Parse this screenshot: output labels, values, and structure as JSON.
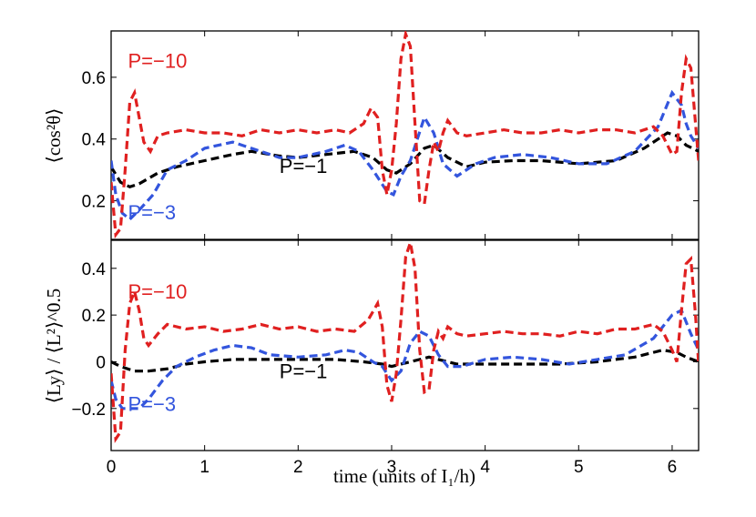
{
  "chart_data": [
    {
      "type": "line",
      "panel": "top",
      "xlabel": "",
      "ylabel": "⟨cos²θ⟩",
      "xlim": [
        0,
        6.283
      ],
      "ylim": [
        0.075,
        0.75
      ],
      "xticks": [
        {
          "value": 0,
          "label": "0"
        },
        {
          "value": 1,
          "label": "1"
        },
        {
          "value": 2,
          "label": "2"
        },
        {
          "value": 3,
          "label": "3"
        },
        {
          "value": 4,
          "label": "4"
        },
        {
          "value": 5,
          "label": "5"
        },
        {
          "value": 6,
          "label": "6"
        }
      ],
      "yticks": [
        {
          "value": 0.2,
          "label": "0.2"
        },
        {
          "value": 0.4,
          "label": "0.4"
        },
        {
          "value": 0.6,
          "label": "0.6"
        }
      ],
      "series": [
        {
          "name": "P=−1",
          "color": "#000000",
          "x": [
            0,
            0.1,
            0.2,
            0.3,
            0.5,
            0.7,
            1.0,
            1.3,
            1.5,
            1.8,
            2.0,
            2.3,
            2.6,
            2.8,
            2.95,
            3.05,
            3.2,
            3.35,
            3.45,
            3.6,
            3.8,
            4.0,
            4.3,
            4.6,
            5.0,
            5.4,
            5.7,
            5.95,
            6.05,
            6.15,
            6.283
          ],
          "y": [
            0.31,
            0.26,
            0.245,
            0.255,
            0.29,
            0.31,
            0.33,
            0.35,
            0.36,
            0.345,
            0.34,
            0.35,
            0.36,
            0.34,
            0.3,
            0.29,
            0.32,
            0.37,
            0.38,
            0.34,
            0.31,
            0.325,
            0.33,
            0.33,
            0.32,
            0.33,
            0.37,
            0.42,
            0.41,
            0.38,
            0.36
          ]
        },
        {
          "name": "P=−3",
          "color": "#3355dd",
          "x": [
            0,
            0.05,
            0.12,
            0.2,
            0.3,
            0.45,
            0.6,
            0.8,
            1.0,
            1.3,
            1.5,
            1.8,
            2.0,
            2.3,
            2.5,
            2.65,
            2.8,
            2.95,
            3.02,
            3.1,
            3.2,
            3.35,
            3.45,
            3.55,
            3.7,
            3.9,
            4.1,
            4.4,
            4.7,
            5.0,
            5.3,
            5.6,
            5.85,
            6.0,
            6.1,
            6.15,
            6.2,
            6.283
          ],
          "y": [
            0.33,
            0.22,
            0.16,
            0.14,
            0.17,
            0.22,
            0.3,
            0.33,
            0.37,
            0.39,
            0.37,
            0.34,
            0.34,
            0.36,
            0.38,
            0.36,
            0.3,
            0.23,
            0.22,
            0.28,
            0.33,
            0.47,
            0.42,
            0.32,
            0.28,
            0.32,
            0.34,
            0.35,
            0.34,
            0.32,
            0.32,
            0.36,
            0.44,
            0.55,
            0.51,
            0.45,
            0.41,
            0.37
          ]
        },
        {
          "name": "P=−10",
          "color": "#e02020",
          "x": [
            0,
            0.05,
            0.1,
            0.15,
            0.2,
            0.25,
            0.3,
            0.35,
            0.42,
            0.5,
            0.6,
            0.8,
            1.0,
            1.2,
            1.4,
            1.6,
            1.8,
            2.0,
            2.2,
            2.4,
            2.55,
            2.7,
            2.78,
            2.85,
            2.9,
            2.95,
            3.0,
            3.05,
            3.1,
            3.15,
            3.2,
            3.25,
            3.3,
            3.35,
            3.4,
            3.45,
            3.5,
            3.55,
            3.6,
            3.7,
            3.8,
            4.0,
            4.2,
            4.4,
            4.6,
            4.8,
            5.0,
            5.2,
            5.4,
            5.6,
            5.8,
            5.9,
            6.0,
            6.05,
            6.1,
            6.15,
            6.2,
            6.25,
            6.283
          ],
          "y": [
            0.26,
            0.09,
            0.11,
            0.3,
            0.52,
            0.55,
            0.47,
            0.39,
            0.36,
            0.41,
            0.42,
            0.43,
            0.42,
            0.42,
            0.41,
            0.43,
            0.42,
            0.43,
            0.42,
            0.43,
            0.42,
            0.45,
            0.5,
            0.47,
            0.3,
            0.22,
            0.3,
            0.45,
            0.66,
            0.74,
            0.7,
            0.45,
            0.2,
            0.19,
            0.3,
            0.39,
            0.36,
            0.42,
            0.46,
            0.42,
            0.41,
            0.42,
            0.43,
            0.42,
            0.42,
            0.43,
            0.42,
            0.43,
            0.43,
            0.42,
            0.44,
            0.41,
            0.35,
            0.36,
            0.55,
            0.66,
            0.63,
            0.45,
            0.33
          ]
        }
      ],
      "annotations": [
        {
          "text": "P=−10",
          "color": "#e02020",
          "x": 0.18,
          "y": 0.63
        },
        {
          "text": "P=−1",
          "color": "#000000",
          "x": 1.8,
          "y": 0.29
        },
        {
          "text": "P=−3",
          "color": "#3355dd",
          "x": 0.18,
          "y": 0.14
        }
      ]
    },
    {
      "type": "line",
      "panel": "bottom",
      "xlabel": "time (units of I₁/h)",
      "ylabel": "⟨Ly⟩ / ⟨L²⟩^0.5",
      "xlim": [
        0,
        6.283
      ],
      "ylim": [
        -0.38,
        0.52
      ],
      "xticks": [
        {
          "value": 0,
          "label": "0"
        },
        {
          "value": 1,
          "label": "1"
        },
        {
          "value": 2,
          "label": "2"
        },
        {
          "value": 3,
          "label": "3"
        },
        {
          "value": 4,
          "label": "4"
        },
        {
          "value": 5,
          "label": "5"
        },
        {
          "value": 6,
          "label": "6"
        }
      ],
      "yticks": [
        {
          "value": -0.2,
          "label": "−0.2"
        },
        {
          "value": 0,
          "label": "0"
        },
        {
          "value": 0.2,
          "label": "0.2"
        },
        {
          "value": 0.4,
          "label": "0.4"
        }
      ],
      "series": [
        {
          "name": "P=−1",
          "color": "#000000",
          "x": [
            0,
            0.1,
            0.25,
            0.4,
            0.6,
            0.8,
            1.0,
            1.3,
            1.6,
            2.0,
            2.4,
            2.7,
            2.9,
            3.0,
            3.2,
            3.4,
            3.5,
            3.7,
            4.0,
            4.4,
            4.8,
            5.2,
            5.6,
            5.9,
            6.05,
            6.15,
            6.283
          ],
          "y": [
            0,
            -0.02,
            -0.04,
            -0.04,
            -0.03,
            -0.01,
            0,
            0.01,
            0.01,
            0.01,
            0.01,
            0,
            -0.01,
            -0.02,
            0,
            0.02,
            0.01,
            -0.01,
            -0.01,
            -0.01,
            -0.01,
            0,
            0.02,
            0.05,
            0.04,
            0.02,
            0
          ]
        },
        {
          "name": "P=−3",
          "color": "#3355dd",
          "x": [
            0,
            0.05,
            0.12,
            0.2,
            0.3,
            0.4,
            0.55,
            0.7,
            0.9,
            1.1,
            1.3,
            1.5,
            1.7,
            2.0,
            2.3,
            2.5,
            2.65,
            2.8,
            2.9,
            3.0,
            3.1,
            3.2,
            3.3,
            3.4,
            3.5,
            3.6,
            3.75,
            4.0,
            4.3,
            4.6,
            4.9,
            5.2,
            5.5,
            5.8,
            6.0,
            6.1,
            6.2,
            6.283
          ],
          "y": [
            -0.08,
            -0.16,
            -0.2,
            -0.2,
            -0.2,
            -0.16,
            -0.08,
            -0.02,
            0.02,
            0.05,
            0.07,
            0.06,
            0.03,
            0.02,
            0.03,
            0.05,
            0.04,
            0,
            -0.02,
            -0.08,
            -0.04,
            0.08,
            0.13,
            0.11,
            0.03,
            -0.02,
            -0.02,
            0.01,
            0.02,
            0.01,
            -0.01,
            0.01,
            0.03,
            0.1,
            0.2,
            0.22,
            0.12,
            0.05
          ]
        },
        {
          "name": "P=−10",
          "color": "#e02020",
          "x": [
            0,
            0.05,
            0.1,
            0.15,
            0.2,
            0.25,
            0.3,
            0.35,
            0.4,
            0.5,
            0.6,
            0.8,
            1.0,
            1.2,
            1.4,
            1.6,
            1.8,
            2.0,
            2.2,
            2.4,
            2.6,
            2.75,
            2.85,
            2.9,
            2.95,
            3.0,
            3.05,
            3.1,
            3.15,
            3.2,
            3.25,
            3.3,
            3.35,
            3.4,
            3.45,
            3.5,
            3.55,
            3.6,
            3.7,
            3.8,
            4.0,
            4.2,
            4.4,
            4.6,
            4.8,
            5.0,
            5.2,
            5.4,
            5.6,
            5.8,
            5.9,
            6.0,
            6.05,
            6.1,
            6.15,
            6.2,
            6.25,
            6.283
          ],
          "y": [
            -0.05,
            -0.33,
            -0.3,
            0.05,
            0.25,
            0.3,
            0.22,
            0.1,
            0.07,
            0.12,
            0.16,
            0.14,
            0.15,
            0.13,
            0.14,
            0.16,
            0.14,
            0.15,
            0.13,
            0.14,
            0.13,
            0.18,
            0.25,
            0.15,
            -0.1,
            -0.17,
            -0.05,
            0.18,
            0.45,
            0.51,
            0.4,
            0.05,
            -0.13,
            -0.12,
            0.05,
            0.13,
            0.1,
            0.15,
            0.12,
            0.11,
            0.12,
            0.13,
            0.12,
            0.12,
            0.11,
            0.13,
            0.12,
            0.14,
            0.14,
            0.16,
            0.13,
            0.05,
            0,
            0.22,
            0.42,
            0.44,
            0.2,
            -0.01
          ]
        }
      ],
      "annotations": [
        {
          "text": "P=−10",
          "color": "#e02020",
          "x": 0.18,
          "y": 0.27
        },
        {
          "text": "P=−1",
          "color": "#000000",
          "x": 1.8,
          "y": -0.07
        },
        {
          "text": "P=−3",
          "color": "#3355dd",
          "x": 0.18,
          "y": -0.21
        }
      ]
    }
  ]
}
